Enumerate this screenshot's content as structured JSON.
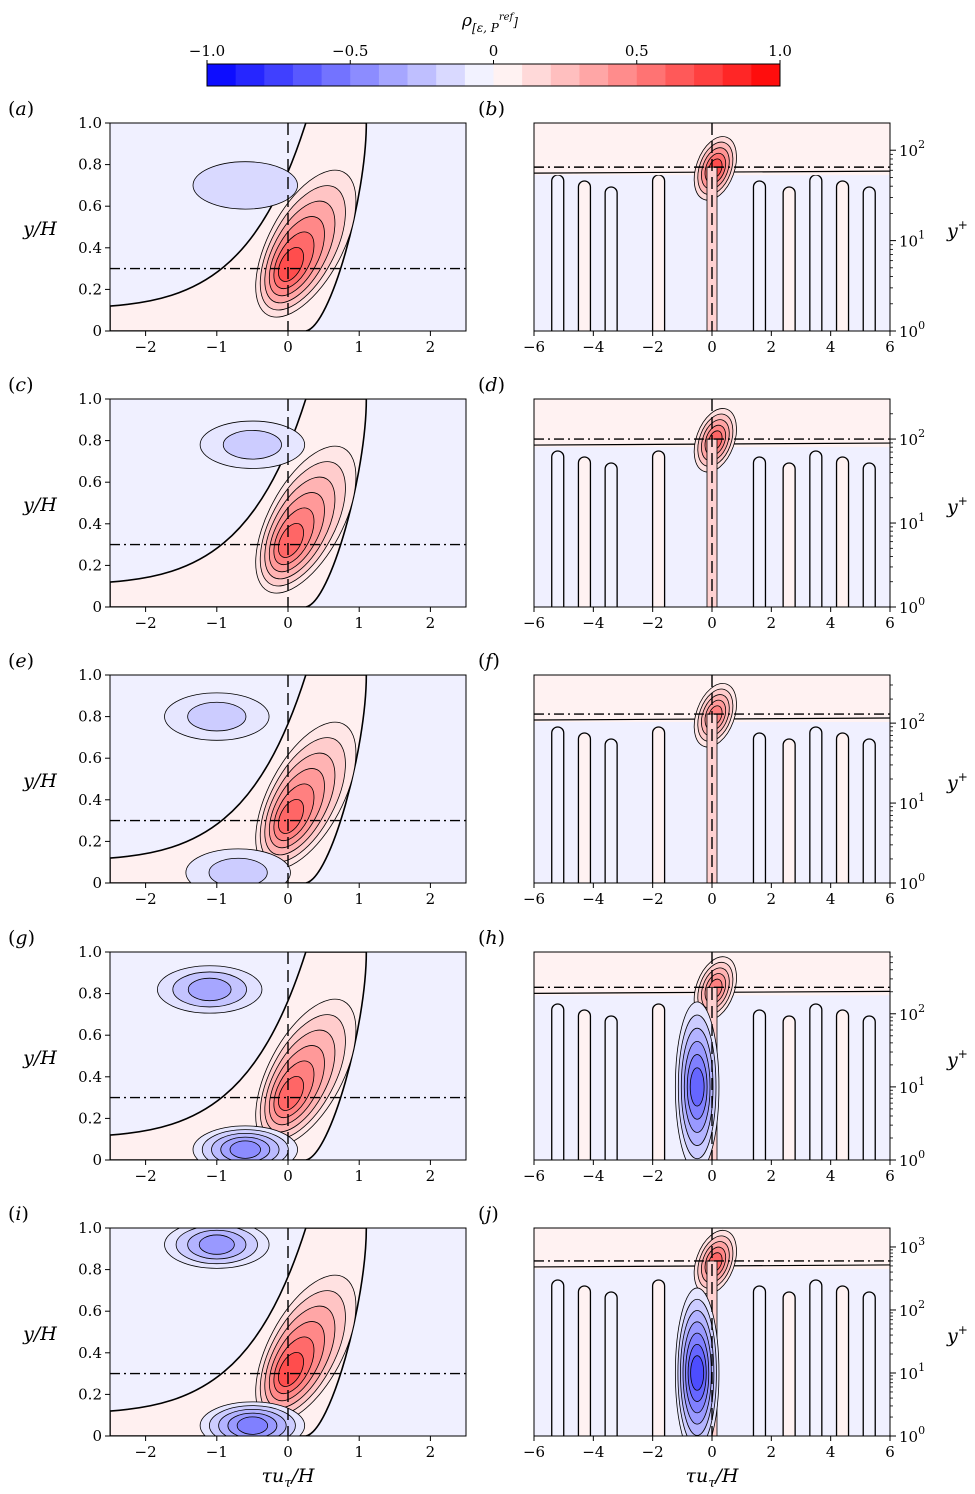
{
  "colorbar": {
    "title": "ρ[ε, Pref]",
    "title_main": "ρ",
    "title_sub": "[ε, P",
    "title_sup": "ref",
    "title_close": "]",
    "ticks": [
      {
        "value": -1.0,
        "label": "−1.0"
      },
      {
        "value": -0.5,
        "label": "−0.5"
      },
      {
        "value": 0,
        "label": "0"
      },
      {
        "value": 0.5,
        "label": "0.5"
      },
      {
        "value": 1.0,
        "label": "1.0"
      }
    ],
    "levels": 20,
    "color_neg": "#0000ff",
    "color_zero": "#ffffff",
    "color_pos": "#ff0000"
  },
  "axes_labels": {
    "left_y": "y/H",
    "right_y": "y",
    "right_y_sup": "+",
    "x_main": "τu",
    "x_sub": "τ",
    "x_rest": "/H"
  },
  "chart_data": {
    "type": "heatmap",
    "description_of_quantity": "correlation coefficient ρ[ε, Pref] contour maps",
    "panels": [
      {
        "label": "(a)",
        "label_letter": "a",
        "side": "left",
        "xlim": [
          -2.5,
          2.5
        ],
        "ylim": [
          0,
          1
        ],
        "xticks": [
          -2,
          -1,
          0,
          1,
          2
        ],
        "yticks": [
          0,
          0.2,
          0.4,
          0.6,
          0.8,
          1.0
        ],
        "ref_y": 0.3,
        "peak": {
          "x": 0.0,
          "y": 0.3,
          "value": 0.7
        },
        "neg_blobs": [
          {
            "x": -0.6,
            "y": 0.7,
            "value": -0.15
          }
        ]
      },
      {
        "label": "(b)",
        "label_letter": "b",
        "side": "right",
        "xlim": [
          -6,
          6
        ],
        "ylog": true,
        "ylim": [
          1,
          200
        ],
        "yticks": [
          {
            "v": 1,
            "e": "0"
          },
          {
            "v": 10,
            "e": "1"
          },
          {
            "v": 100,
            "e": "2"
          }
        ],
        "xticks": [
          -6,
          -4,
          -2,
          0,
          2,
          4,
          6
        ],
        "ref_y": 65,
        "peak": {
          "x": 0.0,
          "y": 65,
          "value": 0.7
        }
      },
      {
        "label": "(c)",
        "label_letter": "c",
        "side": "left",
        "xlim": [
          -2.5,
          2.5
        ],
        "ylim": [
          0,
          1
        ],
        "xticks": [
          -2,
          -1,
          0,
          1,
          2
        ],
        "yticks": [
          0,
          0.2,
          0.4,
          0.6,
          0.8,
          1.0
        ],
        "ref_y": 0.3,
        "peak": {
          "x": 0.0,
          "y": 0.3,
          "value": 0.6
        },
        "neg_blobs": [
          {
            "x": -0.5,
            "y": 0.78,
            "value": -0.2
          }
        ]
      },
      {
        "label": "(d)",
        "label_letter": "d",
        "side": "right",
        "xlim": [
          -6,
          6
        ],
        "ylog": true,
        "ylim": [
          1,
          300
        ],
        "yticks": [
          {
            "v": 1,
            "e": "0"
          },
          {
            "v": 10,
            "e": "1"
          },
          {
            "v": 100,
            "e": "2"
          }
        ],
        "xticks": [
          -6,
          -4,
          -2,
          0,
          2,
          4,
          6
        ],
        "ref_y": 100,
        "peak": {
          "x": 0.0,
          "y": 100,
          "value": 0.6
        }
      },
      {
        "label": "(e)",
        "label_letter": "e",
        "side": "left",
        "xlim": [
          -2.5,
          2.5
        ],
        "ylim": [
          0,
          1
        ],
        "xticks": [
          -2,
          -1,
          0,
          1,
          2
        ],
        "yticks": [
          0,
          0.2,
          0.4,
          0.6,
          0.8,
          1.0
        ],
        "ref_y": 0.3,
        "peak": {
          "x": 0.0,
          "y": 0.3,
          "value": 0.6
        },
        "neg_blobs": [
          {
            "x": -1.0,
            "y": 0.8,
            "value": -0.2
          },
          {
            "x": -0.7,
            "y": 0.05,
            "value": -0.2
          }
        ]
      },
      {
        "label": "(f)",
        "label_letter": "f",
        "side": "right",
        "xlim": [
          -6,
          6
        ],
        "ylog": true,
        "ylim": [
          1,
          400
        ],
        "yticks": [
          {
            "v": 1,
            "e": "0"
          },
          {
            "v": 10,
            "e": "1"
          },
          {
            "v": 100,
            "e": "2"
          }
        ],
        "xticks": [
          -6,
          -4,
          -2,
          0,
          2,
          4,
          6
        ],
        "ref_y": 130,
        "peak": {
          "x": 0.0,
          "y": 130,
          "value": 0.5
        }
      },
      {
        "label": "(g)",
        "label_letter": "g",
        "side": "left",
        "xlim": [
          -2.5,
          2.5
        ],
        "ylim": [
          0,
          1
        ],
        "xticks": [
          -2,
          -1,
          0,
          1,
          2
        ],
        "yticks": [
          0,
          0.2,
          0.4,
          0.6,
          0.8,
          1.0
        ],
        "ref_y": 0.3,
        "peak": {
          "x": 0.0,
          "y": 0.3,
          "value": 0.6
        },
        "neg_blobs": [
          {
            "x": -1.1,
            "y": 0.82,
            "value": -0.35
          },
          {
            "x": -0.6,
            "y": 0.05,
            "value": -0.45
          }
        ]
      },
      {
        "label": "(h)",
        "label_letter": "h",
        "side": "right",
        "xlim": [
          -6,
          6
        ],
        "ylog": true,
        "ylim": [
          1,
          700
        ],
        "yticks": [
          {
            "v": 1,
            "e": "0"
          },
          {
            "v": 10,
            "e": "1"
          },
          {
            "v": 100,
            "e": "2"
          }
        ],
        "xticks": [
          -6,
          -4,
          -2,
          0,
          2,
          4,
          6
        ],
        "ref_y": 230,
        "peak": {
          "x": 0.0,
          "y": 230,
          "value": 0.5
        },
        "neg_blobs": [
          {
            "x": -0.5,
            "y": 10,
            "value": -0.6
          }
        ]
      },
      {
        "label": "(i)",
        "label_letter": "i",
        "side": "left",
        "xlim": [
          -2.5,
          2.5
        ],
        "ylim": [
          0,
          1
        ],
        "xticks": [
          -2,
          -1,
          0,
          1,
          2
        ],
        "yticks": [
          0,
          0.2,
          0.4,
          0.6,
          0.8,
          1.0
        ],
        "ref_y": 0.3,
        "peak": {
          "x": 0.0,
          "y": 0.3,
          "value": 0.7
        },
        "neg_blobs": [
          {
            "x": -1.0,
            "y": 0.92,
            "value": -0.4
          },
          {
            "x": -0.5,
            "y": 0.05,
            "value": -0.5
          }
        ]
      },
      {
        "label": "(j)",
        "label_letter": "j",
        "side": "right",
        "xlim": [
          -6,
          6
        ],
        "ylog": true,
        "ylim": [
          1,
          2000
        ],
        "yticks": [
          {
            "v": 1,
            "e": "0"
          },
          {
            "v": 10,
            "e": "1"
          },
          {
            "v": 100,
            "e": "2"
          },
          {
            "v": 1000,
            "e": "3"
          }
        ],
        "xticks": [
          -6,
          -4,
          -2,
          0,
          2,
          4,
          6
        ],
        "ref_y": 600,
        "peak": {
          "x": 0.0,
          "y": 600,
          "value": 0.6
        },
        "neg_blobs": [
          {
            "x": -0.5,
            "y": 10,
            "value": -0.7
          }
        ]
      }
    ]
  }
}
